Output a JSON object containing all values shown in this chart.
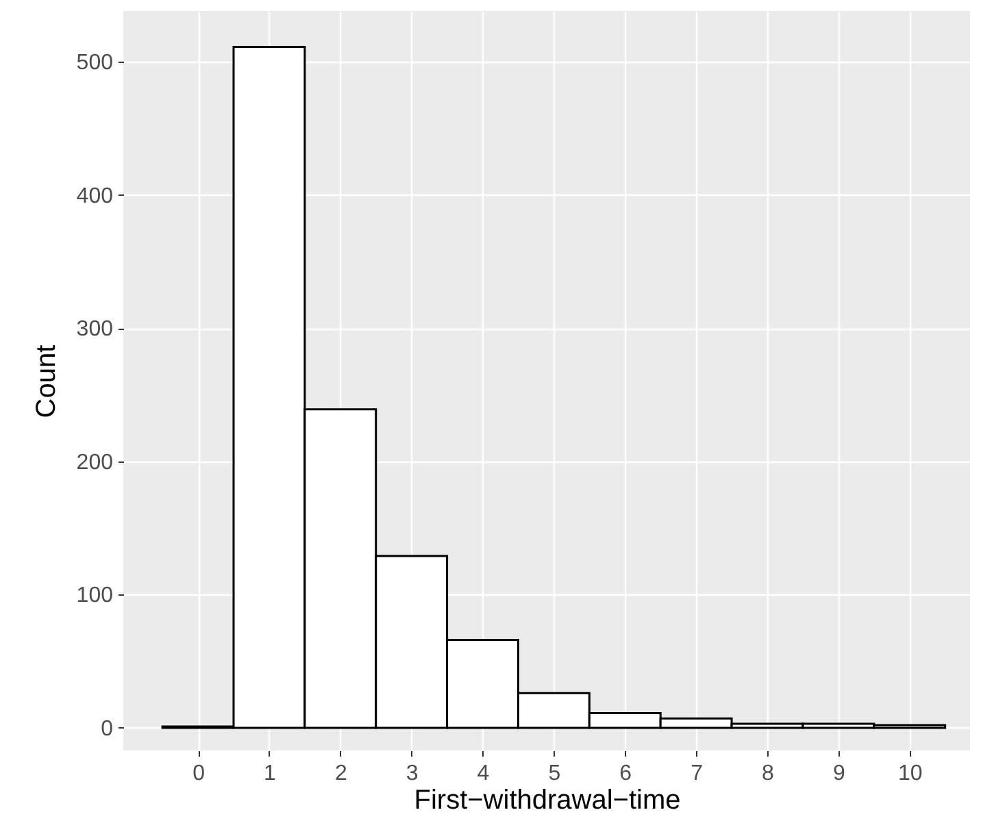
{
  "chart_data": {
    "type": "histogram",
    "xlabel": "First−withdrawal−time",
    "ylabel": "Count",
    "bins": [
      -0.5,
      0.5,
      1.5,
      2.5,
      3.5,
      4.5,
      5.5,
      6.5,
      7.5,
      8.5,
      9.5,
      10.5
    ],
    "values": [
      1,
      511,
      239,
      129,
      66,
      26,
      11,
      7,
      3,
      3,
      2
    ],
    "color": "#ffffff",
    "xlim": [
      -1.05,
      10.85
    ],
    "xticks": [
      0,
      1,
      2,
      3,
      4,
      5,
      6,
      7,
      8,
      9,
      10
    ],
    "ylim": [
      -17,
      538
    ],
    "yticks": [
      0,
      100,
      200,
      300,
      400,
      500
    ],
    "grid": true
  }
}
